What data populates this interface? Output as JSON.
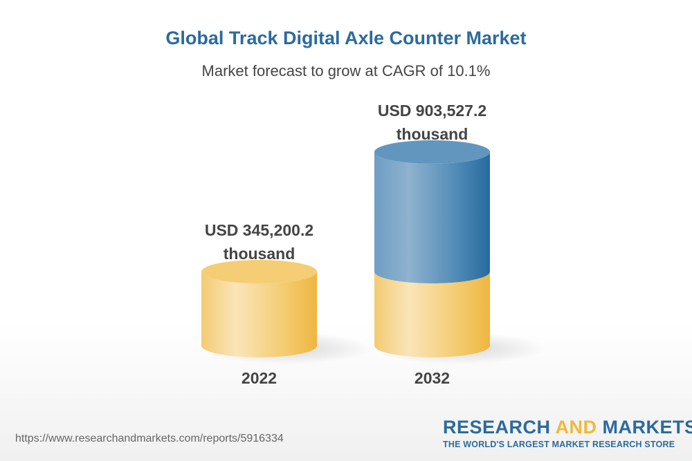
{
  "chart_data": {
    "type": "bar",
    "style": "3d-cylinder",
    "title": "Global Track Digital Axle Counter Market",
    "subtitle": "Market forecast to grow at CAGR of 10.1%",
    "categories": [
      "2022",
      "2032"
    ],
    "values": [
      345200.2,
      903527.2
    ],
    "unit": "USD thousand",
    "data_labels": [
      {
        "line1": "USD 345,200.2",
        "line2": "thousand"
      },
      {
        "line1": "USD 903,527.2",
        "line2": "thousand"
      }
    ],
    "colors": {
      "base": "#f2c05a",
      "growth": "#2b6a9e"
    }
  },
  "footer": {
    "url": "https://www.researchandmarkets.com/reports/5916334",
    "logo": {
      "part1": "RESEARCH ",
      "part2": "AND",
      "part3": " MARKETS",
      "tagline": "THE WORLD'S LARGEST MARKET RESEARCH STORE"
    }
  }
}
